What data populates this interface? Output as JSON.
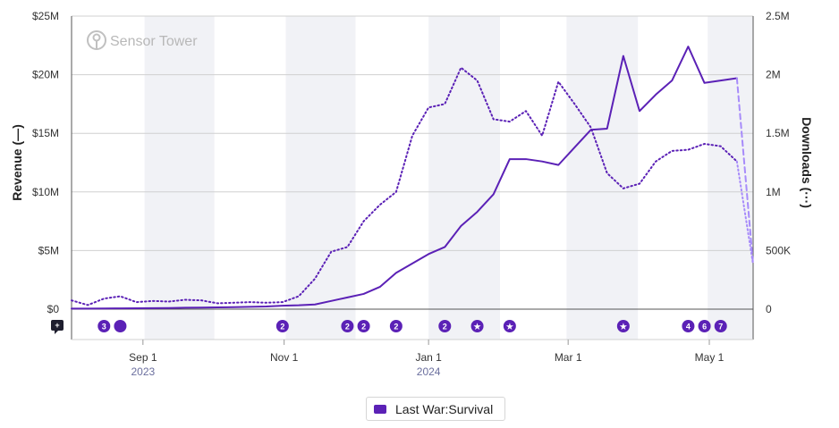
{
  "chart_data": {
    "type": "line",
    "title": "",
    "watermark": "Sensor Tower",
    "ylabel_left": "Revenue (—)",
    "ylabel_right": "Downloads (···)",
    "ylim_left": [
      0,
      25000000
    ],
    "ylim_right": [
      0,
      2500000
    ],
    "y_ticks_left": [
      "$0",
      "$5M",
      "$10M",
      "$15M",
      "$20M",
      "$25M"
    ],
    "y_ticks_right": [
      "0",
      "500K",
      "1M",
      "1.5M",
      "2M",
      "2.5M"
    ],
    "x_ticks": [
      {
        "label": "Sep 1",
        "sub": "2023",
        "week": 4.4
      },
      {
        "label": "Nov 1",
        "sub": "",
        "week": 13.1
      },
      {
        "label": "Jan 1",
        "sub": "2024",
        "week": 22.0
      },
      {
        "label": "Mar 1",
        "sub": "",
        "week": 30.6
      },
      {
        "label": "May 1",
        "sub": "",
        "week": 39.3
      }
    ],
    "x_range_weeks": [
      0,
      42
    ],
    "shaded_month_bands_weeks": [
      [
        4.5,
        8.8
      ],
      [
        13.2,
        17.5
      ],
      [
        22.0,
        26.4
      ],
      [
        30.5,
        34.9
      ],
      [
        39.2,
        42
      ]
    ],
    "series": [
      {
        "name": "Last War:Survival",
        "metric": "Revenue",
        "color": "#5b21b6",
        "style": "solid",
        "x_weeks": [
          0,
          1,
          2,
          3,
          4,
          5,
          6,
          7,
          8,
          9,
          10,
          11,
          12,
          13,
          14,
          15,
          16,
          17,
          18,
          19,
          20,
          21,
          22,
          23,
          24,
          25,
          26,
          27,
          28,
          29,
          30,
          31,
          32,
          33,
          34,
          35,
          36,
          37,
          38,
          39,
          40,
          41,
          42
        ],
        "values": [
          50000,
          50000,
          60000,
          70000,
          80000,
          90000,
          100000,
          120000,
          130000,
          150000,
          170000,
          200000,
          230000,
          300000,
          330000,
          400000,
          700000,
          1000000,
          1300000,
          1900000,
          3100000,
          3900000,
          4700000,
          5300000,
          7100000,
          8300000,
          9800000,
          12800000,
          12800000,
          12600000,
          12300000,
          13800000,
          15300000,
          15400000,
          21600000,
          16900000,
          18300000,
          19500000,
          22400000,
          19300000,
          19500000,
          19700000,
          3800000
        ],
        "projected_from_index": 41
      },
      {
        "name": "Last War:Survival",
        "metric": "Downloads",
        "color": "#5b21b6",
        "style": "dotted",
        "x_weeks": [
          0,
          1,
          2,
          3,
          4,
          5,
          6,
          7,
          8,
          9,
          10,
          11,
          12,
          13,
          14,
          15,
          16,
          17,
          18,
          19,
          20,
          21,
          22,
          23,
          24,
          25,
          26,
          27,
          28,
          29,
          30,
          31,
          32,
          33,
          34,
          35,
          36,
          37,
          38,
          39,
          40,
          41,
          42
        ],
        "values": [
          75000,
          35000,
          90000,
          110000,
          60000,
          70000,
          65000,
          80000,
          75000,
          50000,
          55000,
          60000,
          55000,
          60000,
          110000,
          260000,
          490000,
          530000,
          750000,
          890000,
          1000000,
          1480000,
          1720000,
          1750000,
          2060000,
          1950000,
          1620000,
          1600000,
          1690000,
          1480000,
          1940000,
          1750000,
          1550000,
          1160000,
          1030000,
          1070000,
          1260000,
          1350000,
          1360000,
          1410000,
          1390000,
          1260000,
          380000
        ],
        "projected_from_index": 41
      }
    ],
    "annotation_markers": [
      {
        "label": "3",
        "week": 2.0
      },
      {
        "label": "",
        "week": 3.0
      },
      {
        "label": "2",
        "week": 13.0
      },
      {
        "label": "2",
        "week": 17.0
      },
      {
        "label": "2",
        "week": 18.0
      },
      {
        "label": "2",
        "week": 20.0
      },
      {
        "label": "2",
        "week": 23.0
      },
      {
        "label": "★",
        "week": 25.0
      },
      {
        "label": "★",
        "week": 27.0
      },
      {
        "label": "★",
        "week": 34.0
      },
      {
        "label": "4",
        "week": 38.0
      },
      {
        "label": "6",
        "week": 39.0
      },
      {
        "label": "7",
        "week": 40.0
      }
    ],
    "legend": [
      {
        "label": "Last War:Survival",
        "color": "#5b21b6"
      }
    ]
  }
}
